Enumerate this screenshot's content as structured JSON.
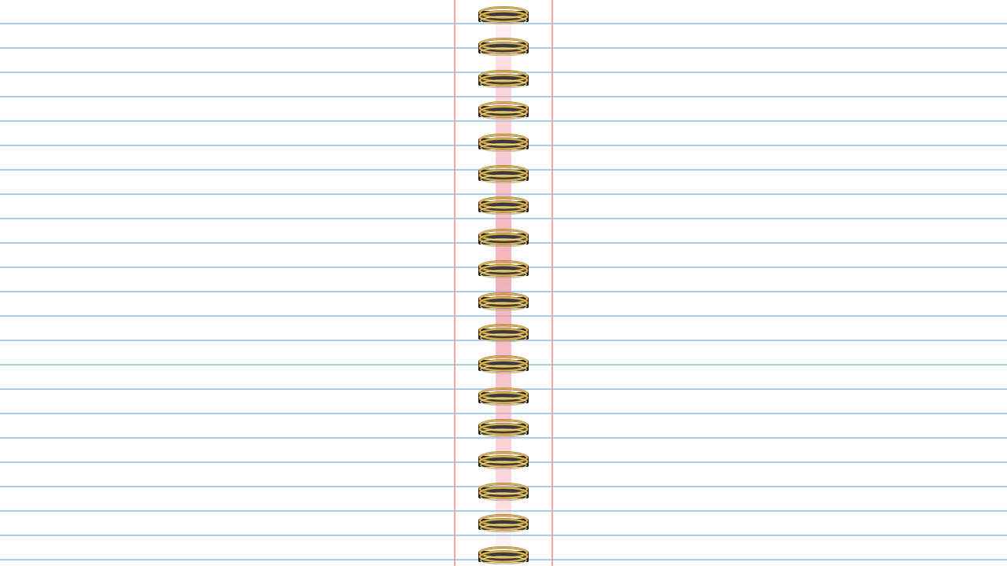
{
  "notebook": {
    "ring_count": 18,
    "colors": {
      "paper": "#ffffff",
      "rule_line": "#a9cfea",
      "margin_line": "#f2a5a8",
      "spine_stripe": "#ef96a5",
      "ring_gold": "#d9b35a",
      "ring_hole": "#1a1a1a"
    },
    "icons": [
      "spiral-ring-icon"
    ]
  }
}
